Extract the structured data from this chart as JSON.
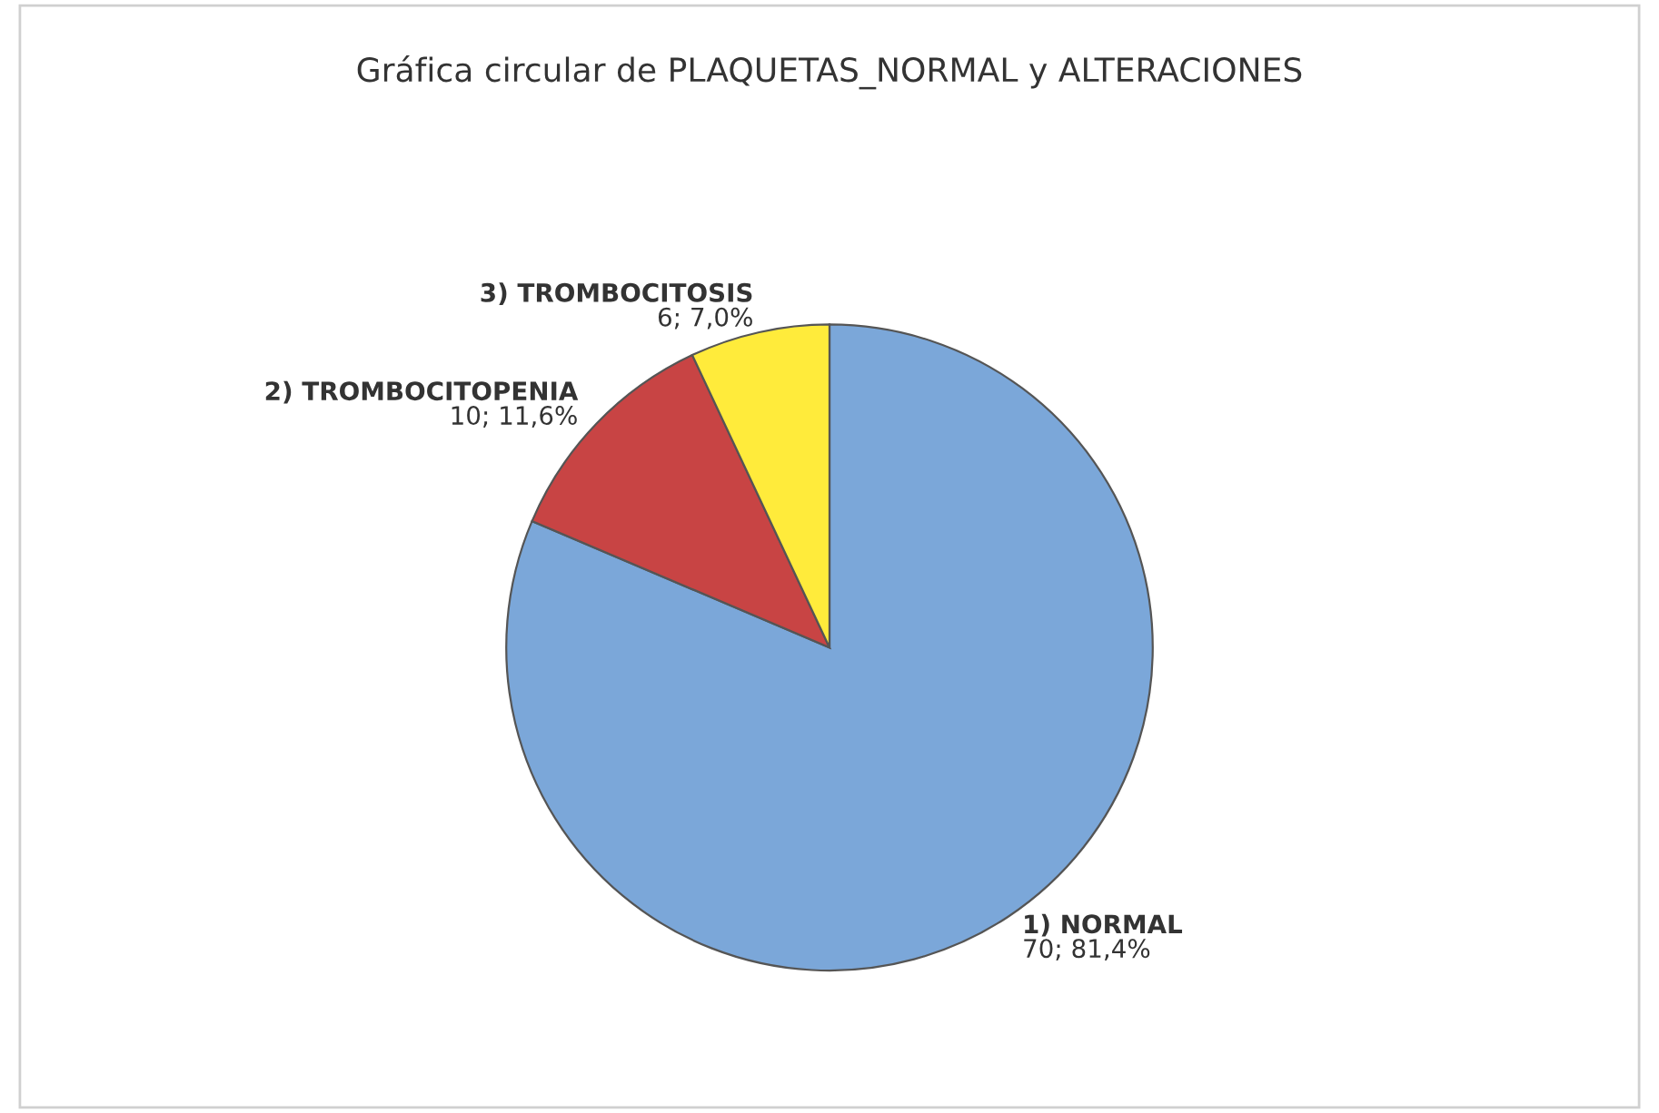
{
  "chart_data": {
    "type": "pie",
    "title": "Gráfica circular de PLAQUETAS_NORMAL y ALTERACIONES",
    "categories": [
      "1) NORMAL",
      "2) TROMBOCITOPENIA",
      "3) TROMBOCITOSIS"
    ],
    "values": [
      70,
      10,
      6
    ],
    "colors": [
      "#7ba7d9",
      "#c84444",
      "#ffeb3b"
    ],
    "value_labels": [
      "70; 81,4%",
      "10; 11,6%",
      "6; 7,0%"
    ]
  }
}
